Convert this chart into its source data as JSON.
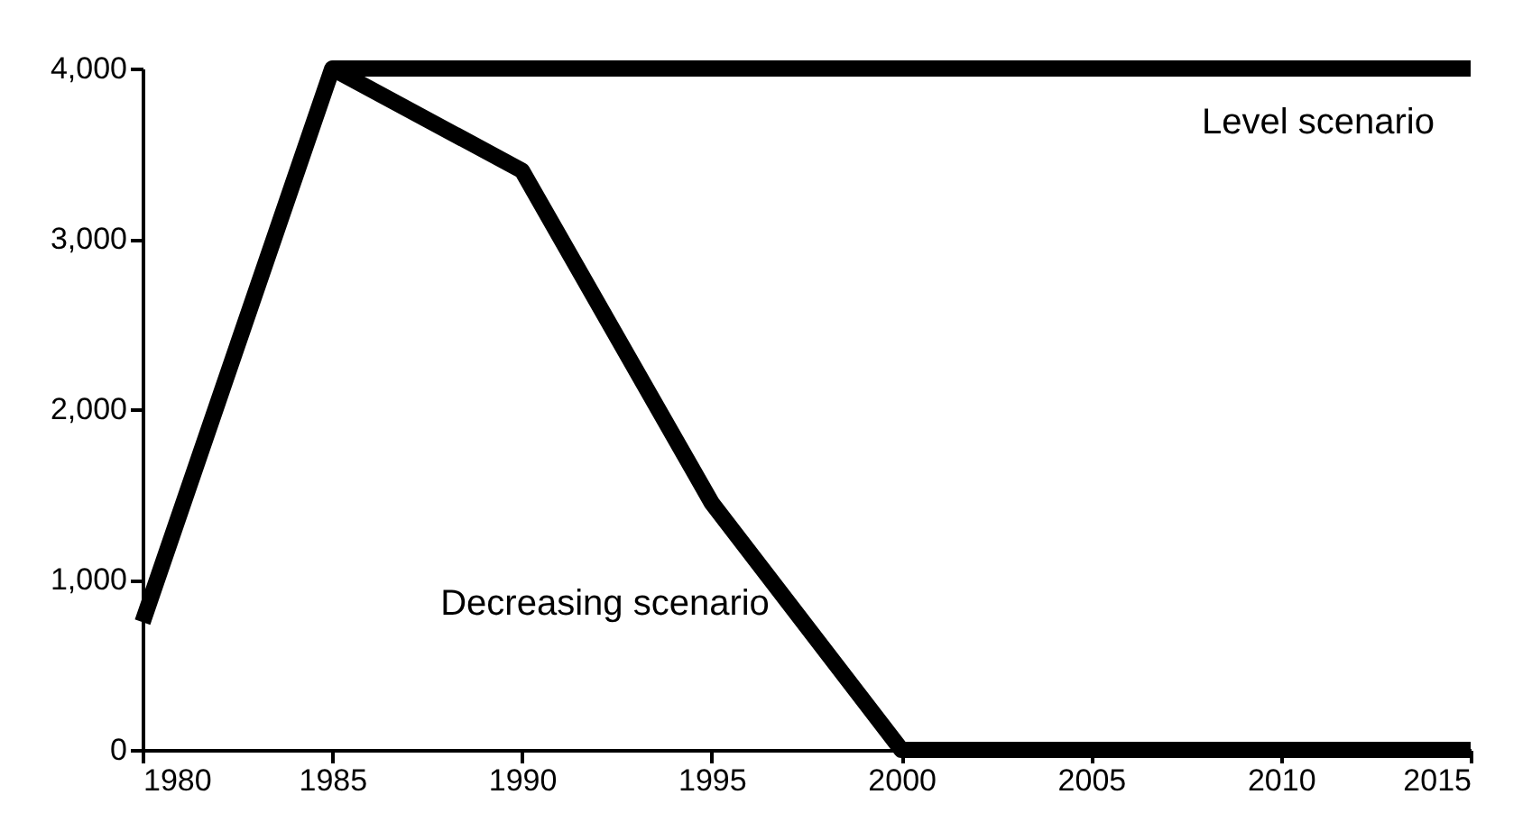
{
  "chart_data": {
    "type": "line",
    "x": [
      1980,
      1985,
      1990,
      1995,
      2000,
      2005,
      2010,
      2015
    ],
    "series": [
      {
        "name": "Level scenario",
        "color": "#000000",
        "x": [
          1985,
          2015
        ],
        "values": [
          4000,
          4000
        ]
      },
      {
        "name": "Decreasing scenario",
        "color": "#000000",
        "values": [
          750,
          4000,
          3400,
          1450,
          0,
          0,
          0,
          0
        ]
      }
    ],
    "xlim": [
      1980,
      2015
    ],
    "xticks": [
      1980,
      1985,
      1990,
      1995,
      2000,
      2005,
      2010,
      2015
    ],
    "ylim": [
      0,
      4000
    ],
    "yticks": [
      {
        "value": 0,
        "label": "0"
      },
      {
        "value": 1000,
        "label": "1,000"
      },
      {
        "value": 2000,
        "label": "2,000"
      },
      {
        "value": 3000,
        "label": "3,000"
      },
      {
        "value": 4000,
        "label": "4,000"
      }
    ],
    "grid": false,
    "legend": false,
    "marker": "none",
    "line_style": "solid"
  }
}
